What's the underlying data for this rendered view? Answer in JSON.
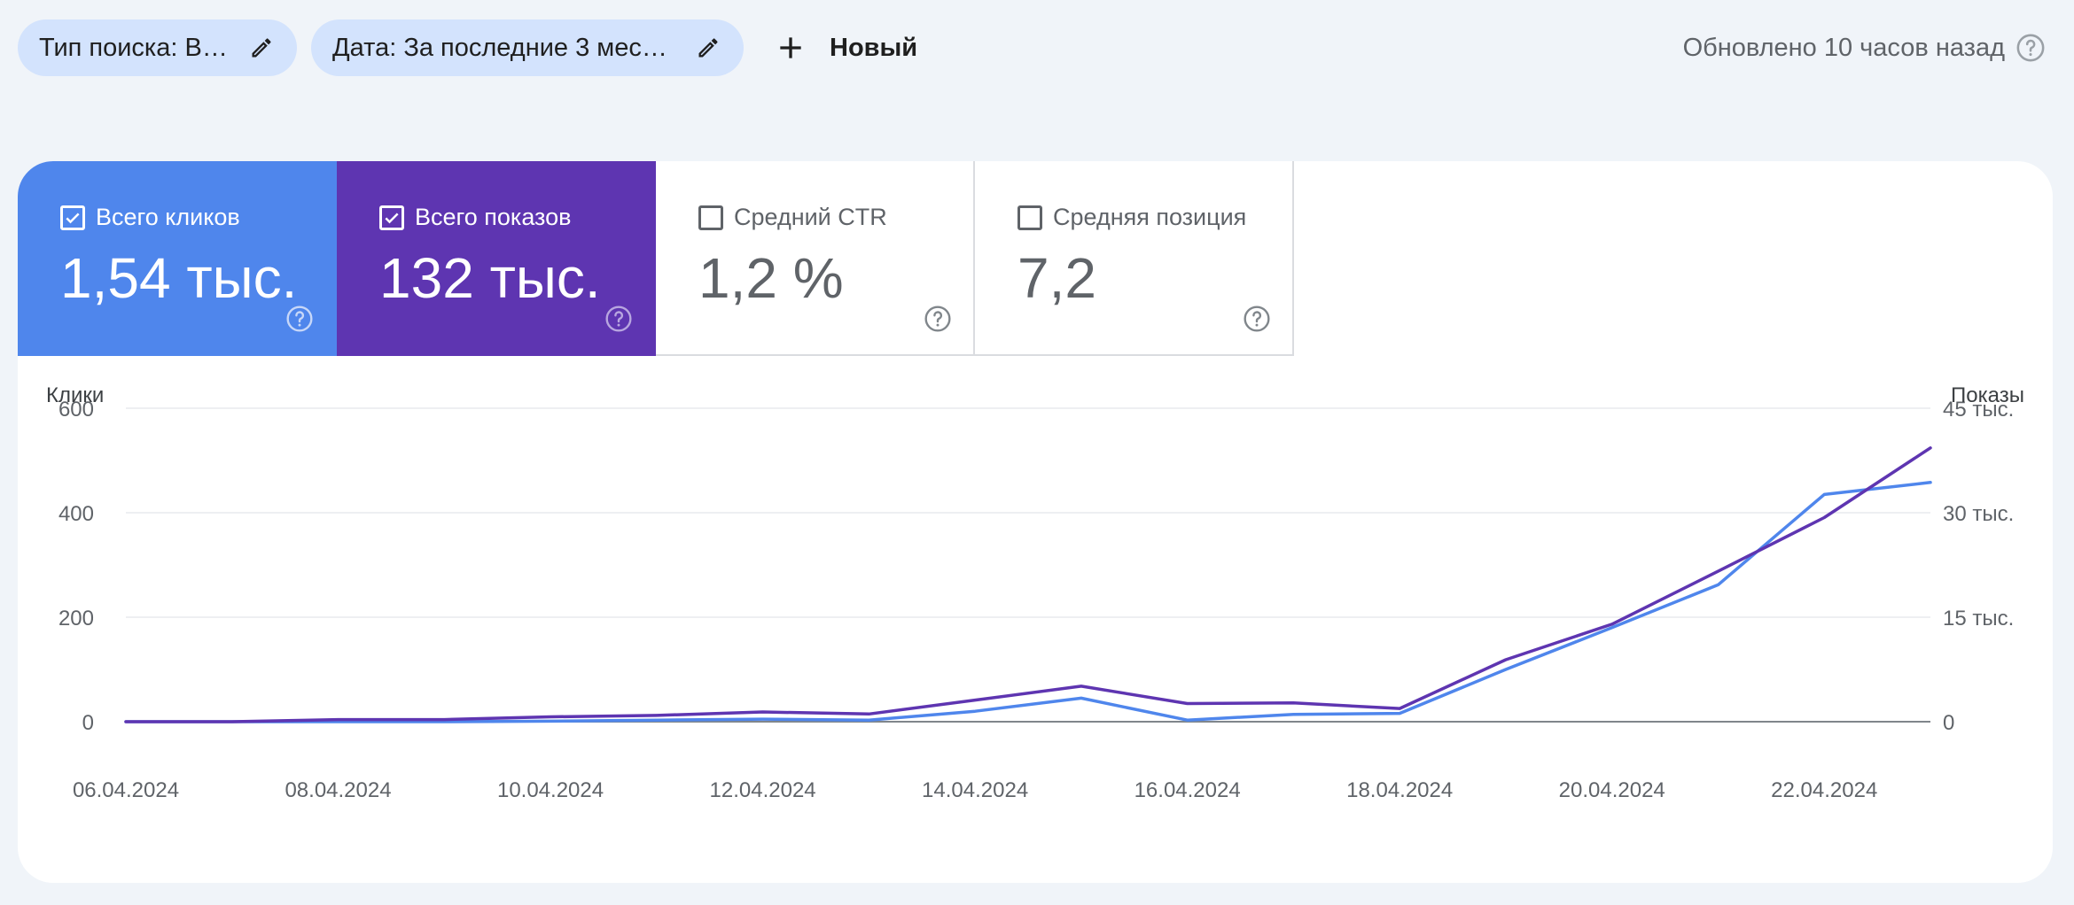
{
  "filters": {
    "search_type": "Тип поиска: Веб",
    "date": "Дата: За последние 3 меся..."
  },
  "new_button": "Новый",
  "updated": "Обновлено 10 часов назад",
  "metrics": [
    {
      "label": "Всего кликов",
      "value": "1,54 тыс.",
      "checked": true,
      "color": "#4f86ec"
    },
    {
      "label": "Всего показов",
      "value": "132 тыс.",
      "checked": true,
      "color": "#5e35b1"
    },
    {
      "label": "Средний CTR",
      "value": "1,2 %",
      "checked": false
    },
    {
      "label": "Средняя позиция",
      "value": "7,2",
      "checked": false
    }
  ],
  "chart_data": {
    "type": "line",
    "x": [
      "06.04.2024",
      "07.04.2024",
      "08.04.2024",
      "09.04.2024",
      "10.04.2024",
      "11.04.2024",
      "12.04.2024",
      "13.04.2024",
      "14.04.2024",
      "15.04.2024",
      "16.04.2024",
      "17.04.2024",
      "18.04.2024",
      "19.04.2024",
      "20.04.2024",
      "21.04.2024",
      "22.04.2024",
      "23.04.2024"
    ],
    "x_tick_labels": [
      "06.04.2024",
      "08.04.2024",
      "10.04.2024",
      "12.04.2024",
      "14.04.2024",
      "16.04.2024",
      "18.04.2024",
      "20.04.2024",
      "22.04.2024"
    ],
    "ylabel_left": "Клики",
    "ylabel_right": "Показы",
    "y_left_ticks": [
      "0",
      "200",
      "400",
      "600"
    ],
    "y_right_ticks": [
      "0",
      "15 тыс.",
      "30 тыс.",
      "45 тыс."
    ],
    "ylim_left": [
      0,
      600
    ],
    "ylim_right": [
      0,
      45000
    ],
    "series": [
      {
        "name": "Клики",
        "axis": "left",
        "color": "#4f86ec",
        "values": [
          0,
          0,
          0,
          0,
          1,
          3,
          5,
          3,
          20,
          45,
          3,
          14,
          16,
          100,
          180,
          262,
          435,
          458
        ]
      },
      {
        "name": "Показы",
        "axis": "right",
        "color": "#5e35b1",
        "values": [
          0,
          0,
          300,
          300,
          700,
          900,
          1400,
          1100,
          3100,
          5100,
          2600,
          2700,
          1900,
          8900,
          14000,
          21600,
          29300,
          39300
        ]
      }
    ],
    "grid": true
  }
}
